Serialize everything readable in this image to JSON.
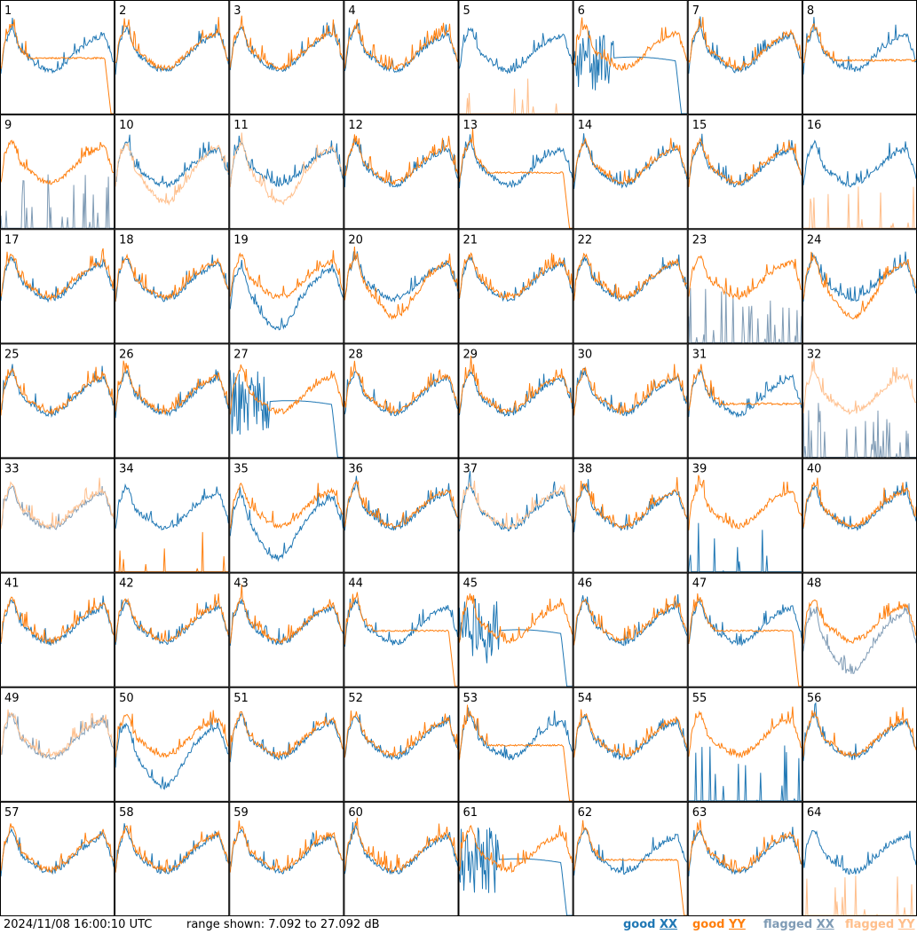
{
  "footer": {
    "timestamp": "2024/11/08 16:00:10 UTC",
    "range_text": "range shown: 7.092 to 27.092 dB"
  },
  "legend": [
    {
      "word": "good",
      "pol": "XX",
      "color": "#1f77b4"
    },
    {
      "word": "good",
      "pol": "YY",
      "color": "#ff7f0e"
    },
    {
      "word": "flagged",
      "pol": "XX",
      "color": "#7f9bb5"
    },
    {
      "word": "flagged",
      "pol": "YY",
      "color": "#ffbf8c"
    }
  ],
  "colors": {
    "good_xx": "#1f77b4",
    "good_yy": "#ff7f0e",
    "flagged_xx": "#7f9bb5",
    "flagged_yy": "#ffbf8c"
  },
  "chart_data": {
    "type": "line",
    "layout": "8x8 small multiples",
    "ylim_db": [
      7.092,
      27.092
    ],
    "panels": [
      {
        "id": "1",
        "xx": "good",
        "yy": "good",
        "shape": "yy_dropout"
      },
      {
        "id": "2",
        "xx": "good",
        "yy": "good",
        "shape": "normal"
      },
      {
        "id": "3",
        "xx": "good",
        "yy": "good",
        "shape": "normal"
      },
      {
        "id": "4",
        "xx": "good",
        "yy": "good",
        "shape": "normal"
      },
      {
        "id": "5",
        "xx": "good",
        "yy": "flagged",
        "shape": "yy_spikes"
      },
      {
        "id": "6",
        "xx": "good",
        "yy": "good",
        "shape": "xx_dropout"
      },
      {
        "id": "7",
        "xx": "good",
        "yy": "good",
        "shape": "normal"
      },
      {
        "id": "8",
        "xx": "good",
        "yy": "good",
        "shape": "yy_low"
      },
      {
        "id": "9",
        "xx": "flagged",
        "yy": "good",
        "shape": "xx_spikes"
      },
      {
        "id": "10",
        "xx": "good",
        "yy": "flagged",
        "shape": "yy_dip"
      },
      {
        "id": "11",
        "xx": "good",
        "yy": "flagged",
        "shape": "yy_dip"
      },
      {
        "id": "12",
        "xx": "good",
        "yy": "good",
        "shape": "normal"
      },
      {
        "id": "13",
        "xx": "good",
        "yy": "good",
        "shape": "yy_dropout"
      },
      {
        "id": "14",
        "xx": "good",
        "yy": "good",
        "shape": "normal"
      },
      {
        "id": "15",
        "xx": "good",
        "yy": "good",
        "shape": "normal"
      },
      {
        "id": "16",
        "xx": "good",
        "yy": "flagged",
        "shape": "yy_spikes"
      },
      {
        "id": "17",
        "xx": "good",
        "yy": "good",
        "shape": "normal"
      },
      {
        "id": "18",
        "xx": "good",
        "yy": "good",
        "shape": "normal"
      },
      {
        "id": "19",
        "xx": "good",
        "yy": "good",
        "shape": "xx_dip"
      },
      {
        "id": "20",
        "xx": "good",
        "yy": "good",
        "shape": "yy_dip"
      },
      {
        "id": "21",
        "xx": "good",
        "yy": "good",
        "shape": "normal"
      },
      {
        "id": "22",
        "xx": "good",
        "yy": "good",
        "shape": "normal"
      },
      {
        "id": "23",
        "xx": "flagged",
        "yy": "good",
        "shape": "xx_spikes"
      },
      {
        "id": "24",
        "xx": "good",
        "yy": "good",
        "shape": "yy_dip"
      },
      {
        "id": "25",
        "xx": "good",
        "yy": "good",
        "shape": "normal"
      },
      {
        "id": "26",
        "xx": "good",
        "yy": "good",
        "shape": "normal"
      },
      {
        "id": "27",
        "xx": "good",
        "yy": "good",
        "shape": "xx_dropout"
      },
      {
        "id": "28",
        "xx": "good",
        "yy": "good",
        "shape": "normal"
      },
      {
        "id": "29",
        "xx": "good",
        "yy": "good",
        "shape": "normal"
      },
      {
        "id": "30",
        "xx": "good",
        "yy": "good",
        "shape": "normal"
      },
      {
        "id": "31",
        "xx": "good",
        "yy": "good",
        "shape": "yy_low"
      },
      {
        "id": "32",
        "xx": "flagged",
        "yy": "flagged",
        "shape": "xx_spikes"
      },
      {
        "id": "33",
        "xx": "flagged",
        "yy": "flagged",
        "shape": "normal"
      },
      {
        "id": "34",
        "xx": "good",
        "yy": "good",
        "shape": "yy_spikes"
      },
      {
        "id": "35",
        "xx": "good",
        "yy": "good",
        "shape": "xx_dip"
      },
      {
        "id": "36",
        "xx": "good",
        "yy": "good",
        "shape": "normal"
      },
      {
        "id": "37",
        "xx": "good",
        "yy": "flagged",
        "shape": "normal"
      },
      {
        "id": "38",
        "xx": "good",
        "yy": "good",
        "shape": "normal"
      },
      {
        "id": "39",
        "xx": "good",
        "yy": "good",
        "shape": "xx_spikes"
      },
      {
        "id": "40",
        "xx": "good",
        "yy": "good",
        "shape": "normal"
      },
      {
        "id": "41",
        "xx": "good",
        "yy": "good",
        "shape": "normal"
      },
      {
        "id": "42",
        "xx": "good",
        "yy": "good",
        "shape": "normal"
      },
      {
        "id": "43",
        "xx": "good",
        "yy": "good",
        "shape": "normal"
      },
      {
        "id": "44",
        "xx": "good",
        "yy": "good",
        "shape": "yy_dropout"
      },
      {
        "id": "45",
        "xx": "good",
        "yy": "good",
        "shape": "xx_dropout"
      },
      {
        "id": "46",
        "xx": "good",
        "yy": "good",
        "shape": "normal"
      },
      {
        "id": "47",
        "xx": "good",
        "yy": "good",
        "shape": "yy_dropout"
      },
      {
        "id": "48",
        "xx": "flagged",
        "yy": "good",
        "shape": "xx_dip"
      },
      {
        "id": "49",
        "xx": "flagged",
        "yy": "flagged",
        "shape": "normal"
      },
      {
        "id": "50",
        "xx": "good",
        "yy": "good",
        "shape": "xx_dip"
      },
      {
        "id": "51",
        "xx": "good",
        "yy": "good",
        "shape": "normal"
      },
      {
        "id": "52",
        "xx": "good",
        "yy": "good",
        "shape": "normal"
      },
      {
        "id": "53",
        "xx": "good",
        "yy": "good",
        "shape": "yy_dropout"
      },
      {
        "id": "54",
        "xx": "good",
        "yy": "good",
        "shape": "normal"
      },
      {
        "id": "55",
        "xx": "good",
        "yy": "good",
        "shape": "xx_spikes"
      },
      {
        "id": "56",
        "xx": "good",
        "yy": "good",
        "shape": "normal"
      },
      {
        "id": "57",
        "xx": "good",
        "yy": "good",
        "shape": "normal"
      },
      {
        "id": "58",
        "xx": "good",
        "yy": "good",
        "shape": "normal"
      },
      {
        "id": "59",
        "xx": "good",
        "yy": "good",
        "shape": "normal"
      },
      {
        "id": "60",
        "xx": "good",
        "yy": "good",
        "shape": "normal"
      },
      {
        "id": "61",
        "xx": "good",
        "yy": "good",
        "shape": "xx_dropout"
      },
      {
        "id": "62",
        "xx": "good",
        "yy": "good",
        "shape": "yy_dropout"
      },
      {
        "id": "63",
        "xx": "good",
        "yy": "good",
        "shape": "normal"
      },
      {
        "id": "64",
        "xx": "good",
        "yy": "flagged",
        "shape": "yy_spikes"
      }
    ]
  }
}
